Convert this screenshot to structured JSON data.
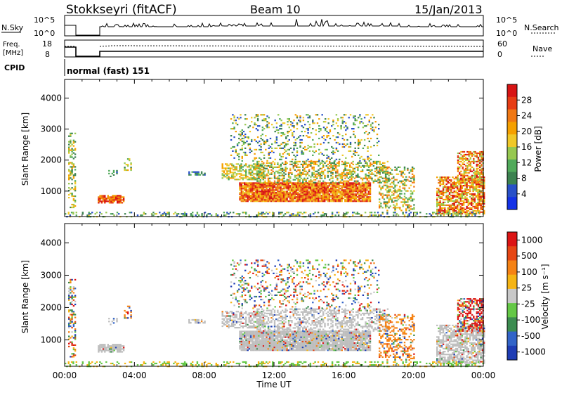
{
  "header": {
    "station": "Stokkseyri (fitACF)",
    "beam": "Beam 10",
    "date": "15/Jan/2013"
  },
  "status_panels": {
    "nsky": {
      "left_label": "N.Sky",
      "right_label": "N.Search",
      "left_ticks": [
        "10^5",
        "10^0"
      ],
      "right_ticks": [
        "10^5",
        "10^0"
      ]
    },
    "freq": {
      "left_label_1": "Freq.",
      "left_label_2": "[MHz]",
      "right_label": "Nave",
      "left_ticks": [
        "18",
        "8"
      ],
      "right_ticks": [
        "60",
        "0"
      ]
    },
    "cpid": {
      "label": "CPID",
      "mode_text": "normal (fast) 151"
    }
  },
  "chart_data": [
    {
      "type": "heatmap",
      "name": "Power",
      "ylabel": "Slant Range [km]",
      "yticks": [
        1000,
        2000,
        3000,
        4000
      ],
      "ylim": [
        180,
        4600
      ],
      "colorbar": {
        "label": "Power [dB]",
        "ticks": [
          "4",
          "8",
          "12",
          "16",
          "20",
          "24",
          "28"
        ],
        "colors": [
          "#1432e6",
          "#2850c8",
          "#3c8250",
          "#50aa5a",
          "#96c850",
          "#f0c828",
          "#f5a000",
          "#f07814",
          "#e63c14",
          "#d71414"
        ]
      }
    },
    {
      "type": "heatmap",
      "name": "Velocity",
      "ylabel": "Slant Range [km]",
      "xlabel": "Time UT",
      "xticks": [
        "00:00",
        "04:00",
        "08:00",
        "12:00",
        "16:00",
        "20:00",
        "00:00"
      ],
      "yticks": [
        1000,
        2000,
        3000,
        4000
      ],
      "ylim": [
        180,
        4600
      ],
      "ground_scatter_color": "#bebebe",
      "colorbar": {
        "label": "Velocity [m s⁻¹]",
        "ticks": [
          "1000",
          "500",
          "100",
          "25",
          "-25",
          "-100",
          "-500",
          "-1000"
        ],
        "colors": [
          "#1e3cb4",
          "#3264c8",
          "#3c8c50",
          "#64c846",
          "#c8c8c8",
          "#f5b414",
          "#f58214",
          "#e64614",
          "#dc1414"
        ]
      }
    }
  ]
}
